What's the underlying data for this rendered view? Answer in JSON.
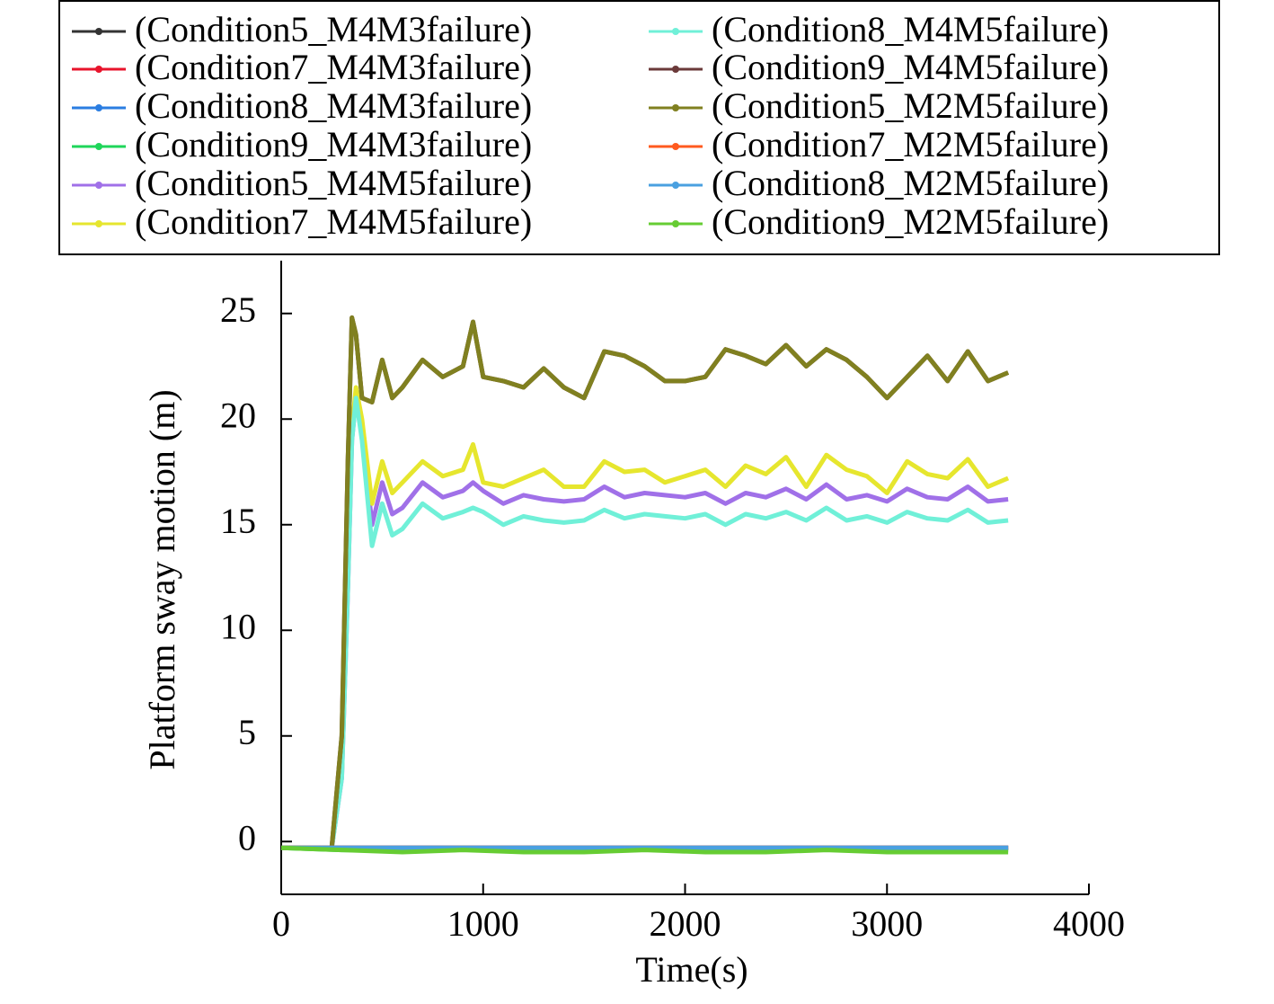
{
  "chart_data": {
    "type": "line",
    "xlabel": "Time(s)",
    "ylabel": "Platform sway motion (m)",
    "xlim": [
      0,
      4000
    ],
    "xticks": [
      0,
      1000,
      2000,
      3000,
      4000
    ],
    "ylim": [
      -2.5,
      27.5
    ],
    "yticks": [
      0,
      5,
      10,
      15,
      20,
      25
    ],
    "grid": false,
    "legend": "top",
    "x": [
      0,
      100,
      200,
      250,
      300,
      330,
      350,
      370,
      400,
      450,
      500,
      550,
      600,
      700,
      800,
      900,
      950,
      1000,
      1100,
      1200,
      1300,
      1400,
      1500,
      1600,
      1700,
      1800,
      1900,
      2000,
      2100,
      2200,
      2300,
      2400,
      2500,
      2600,
      2700,
      2800,
      2900,
      3000,
      3100,
      3200,
      3300,
      3400,
      3500,
      3600
    ],
    "series": [
      {
        "name": "(Condition5_M4M3failure)",
        "color": "#333333",
        "x": [
          0,
          300,
          600,
          900,
          1200,
          1500,
          1800,
          2100,
          2400,
          2700,
          3000,
          3300,
          3600
        ],
        "values": [
          -0.3,
          -0.3,
          -0.3,
          -0.3,
          -0.3,
          -0.3,
          -0.3,
          -0.3,
          -0.3,
          -0.3,
          -0.3,
          -0.3,
          -0.3
        ]
      },
      {
        "name": "(Condition7_M4M3failure)",
        "color": "#e8142c",
        "x": [
          0,
          300,
          600,
          900,
          1200,
          1500,
          1800,
          2100,
          2400,
          2700,
          3000,
          3300,
          3600
        ],
        "values": [
          -0.3,
          -0.3,
          -0.3,
          -0.3,
          -0.3,
          -0.3,
          -0.3,
          -0.3,
          -0.3,
          -0.3,
          -0.3,
          -0.3,
          -0.3
        ]
      },
      {
        "name": "(Condition8_M4M3failure)",
        "color": "#2a7de1",
        "x": [
          0,
          300,
          600,
          900,
          1200,
          1500,
          1800,
          2100,
          2400,
          2700,
          3000,
          3300,
          3600
        ],
        "values": [
          -0.3,
          -0.3,
          -0.3,
          -0.3,
          -0.3,
          -0.3,
          -0.3,
          -0.3,
          -0.3,
          -0.3,
          -0.3,
          -0.3,
          -0.3
        ]
      },
      {
        "name": "(Condition9_M4M3failure)",
        "color": "#1fd65a",
        "x": [
          0,
          300,
          600,
          900,
          1200,
          1500,
          1800,
          2100,
          2400,
          2700,
          3000,
          3300,
          3600
        ],
        "values": [
          -0.3,
          -0.4,
          -0.4,
          -0.3,
          -0.4,
          -0.4,
          -0.3,
          -0.4,
          -0.4,
          -0.3,
          -0.4,
          -0.4,
          -0.4
        ]
      },
      {
        "name": "(Condition5_M4M5failure)",
        "color": "#a070e8",
        "values": [
          -0.3,
          -0.3,
          -0.3,
          -0.3,
          3,
          12,
          19,
          21,
          19.5,
          15,
          17,
          15.5,
          15.8,
          17,
          16.3,
          16.6,
          17,
          16.6,
          16,
          16.4,
          16.2,
          16.1,
          16.2,
          16.8,
          16.3,
          16.5,
          16.4,
          16.3,
          16.5,
          16,
          16.5,
          16.3,
          16.7,
          16.2,
          16.9,
          16.2,
          16.4,
          16.1,
          16.7,
          16.3,
          16.2,
          16.8,
          16.1,
          16.2
        ]
      },
      {
        "name": "(Condition7_M4M5failure)",
        "color": "#e6e62e",
        "values": [
          -0.3,
          -0.3,
          -0.3,
          -0.3,
          3.2,
          12.5,
          19.5,
          21.5,
          20,
          16,
          18,
          16.5,
          17,
          18,
          17.3,
          17.6,
          18.8,
          17,
          16.8,
          17.2,
          17.6,
          16.8,
          16.8,
          18,
          17.5,
          17.6,
          17,
          17.3,
          17.6,
          16.8,
          17.8,
          17.4,
          18.2,
          16.8,
          18.3,
          17.6,
          17.3,
          16.5,
          18,
          17.4,
          17.2,
          18.1,
          16.8,
          17.2
        ]
      },
      {
        "name": "(Condition8_M4M5failure)",
        "color": "#70f0d8",
        "values": [
          -0.3,
          -0.3,
          -0.3,
          -0.3,
          3,
          12,
          19,
          21,
          19,
          14,
          16,
          14.5,
          14.8,
          16,
          15.3,
          15.6,
          15.8,
          15.6,
          15,
          15.4,
          15.2,
          15.1,
          15.2,
          15.7,
          15.3,
          15.5,
          15.4,
          15.3,
          15.5,
          15,
          15.5,
          15.3,
          15.6,
          15.2,
          15.8,
          15.2,
          15.4,
          15.1,
          15.6,
          15.3,
          15.2,
          15.7,
          15.1,
          15.2
        ]
      },
      {
        "name": "(Condition9_M4M5failure)",
        "color": "#6b3a3a",
        "values": [
          -0.3,
          -0.3,
          -0.3,
          -0.3,
          5,
          18,
          24.8,
          24,
          21,
          20.8,
          22.8,
          21,
          21.5,
          22.8,
          22,
          22.5,
          24.6,
          22,
          21.8,
          21.5,
          22.4,
          21.5,
          21,
          23.2,
          23,
          22.5,
          21.8,
          21.8,
          22,
          23.3,
          23,
          22.6,
          23.5,
          22.5,
          23.3,
          22.8,
          22,
          21,
          22,
          23,
          21.8,
          23.2,
          21.8,
          22.2
        ]
      },
      {
        "name": "(Condition5_M2M5failure)",
        "color": "#808020",
        "values": [
          -0.3,
          -0.3,
          -0.3,
          -0.3,
          5,
          18,
          24.8,
          24,
          21,
          20.8,
          22.8,
          21,
          21.5,
          22.8,
          22,
          22.5,
          24.6,
          22,
          21.8,
          21.5,
          22.4,
          21.5,
          21,
          23.2,
          23,
          22.5,
          21.8,
          21.8,
          22,
          23.3,
          23,
          22.6,
          23.5,
          22.5,
          23.3,
          22.8,
          22,
          21,
          22,
          23,
          21.8,
          23.2,
          21.8,
          22.2
        ]
      },
      {
        "name": "(Condition7_M2M5failure)",
        "color": "#ff5a1f",
        "x": [
          0,
          300,
          600,
          900,
          1200,
          1500,
          1800,
          2100,
          2400,
          2700,
          3000,
          3300,
          3600
        ],
        "values": [
          -0.3,
          -0.3,
          -0.3,
          -0.3,
          -0.3,
          -0.3,
          -0.3,
          -0.3,
          -0.3,
          -0.3,
          -0.3,
          -0.3,
          -0.3
        ]
      },
      {
        "name": "(Condition8_M2M5failure)",
        "color": "#4aa0e0",
        "x": [
          0,
          300,
          600,
          900,
          1200,
          1500,
          1800,
          2100,
          2400,
          2700,
          3000,
          3300,
          3600
        ],
        "values": [
          -0.3,
          -0.3,
          -0.3,
          -0.3,
          -0.3,
          -0.3,
          -0.3,
          -0.3,
          -0.3,
          -0.3,
          -0.3,
          -0.3,
          -0.3
        ]
      },
      {
        "name": "(Condition9_M2M5failure)",
        "color": "#66cc33",
        "x": [
          0,
          300,
          600,
          900,
          1200,
          1500,
          1800,
          2100,
          2400,
          2700,
          3000,
          3300,
          3600
        ],
        "values": [
          -0.3,
          -0.4,
          -0.5,
          -0.4,
          -0.5,
          -0.5,
          -0.4,
          -0.5,
          -0.5,
          -0.4,
          -0.5,
          -0.5,
          -0.5
        ]
      }
    ]
  }
}
